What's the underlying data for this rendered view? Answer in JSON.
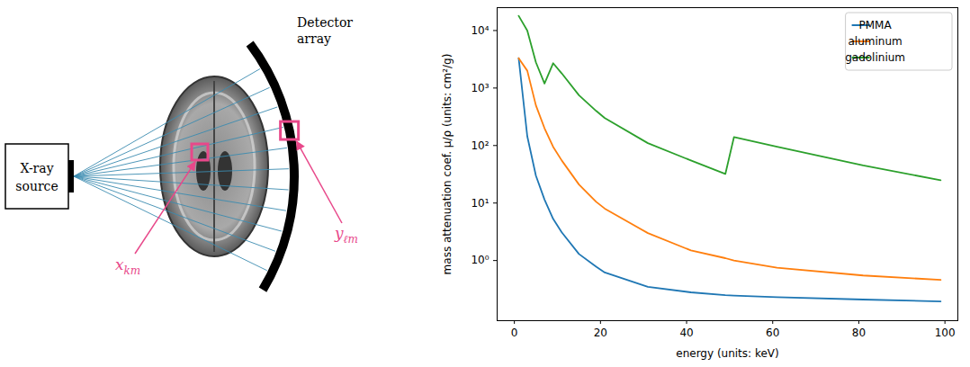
{
  "chart_data": {
    "type": "line",
    "x_label": "energy (units: keV)",
    "y_label": "mass attenuation coef. μ/ρ (units: cm²/g)",
    "x": [
      1,
      3,
      5,
      7,
      9,
      11,
      15,
      19,
      21,
      31,
      41,
      49,
      51,
      61,
      81,
      99
    ],
    "series": [
      {
        "name": "PMMA",
        "color": "#1f77b4",
        "values": [
          3300,
          145,
          30,
          11.5,
          5.3,
          3.1,
          1.3,
          0.78,
          0.62,
          0.35,
          0.28,
          0.25,
          0.245,
          0.23,
          0.21,
          0.195
        ]
      },
      {
        "name": "aluminum",
        "color": "#ff7f0e",
        "values": [
          3300,
          2000,
          500,
          200,
          95,
          55,
          21,
          10.5,
          8,
          3,
          1.5,
          1.1,
          1.0,
          0.75,
          0.55,
          0.46
        ]
      },
      {
        "name": "gadolinium",
        "color": "#2ca02c",
        "values": [
          18000,
          10000,
          2800,
          1200,
          2700,
          1800,
          750,
          400,
          300,
          110,
          55,
          32,
          140,
          95,
          45,
          25
        ]
      }
    ],
    "xlim": [
      -4,
      103
    ],
    "xticks": [
      0,
      20,
      40,
      60,
      80,
      100
    ],
    "ylim": [
      0.09,
      25000
    ],
    "yticks": [
      {
        "value": 1,
        "label": "10⁰"
      },
      {
        "value": 10,
        "label": "10¹"
      },
      {
        "value": 100,
        "label": "10²"
      },
      {
        "value": 1000,
        "label": "10³"
      },
      {
        "value": 10000,
        "label": "10⁴"
      }
    ],
    "log": "y",
    "grid": false,
    "legend": "upper right"
  },
  "diagram": {
    "source": "X-ray source",
    "detector": "Detector array",
    "labels": [
      {
        "base": "x",
        "sub": "km"
      },
      {
        "base": "y",
        "sub": "ℓm"
      }
    ]
  }
}
